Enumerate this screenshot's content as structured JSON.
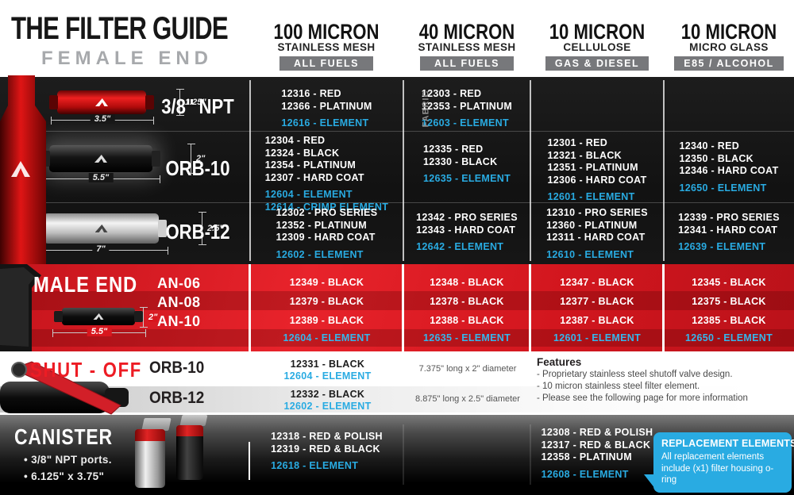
{
  "header": {
    "title": "THE FILTER GUIDE",
    "subtitle": "FEMALE END",
    "columns": [
      {
        "line1": "100 MICRON",
        "line2": "STAINLESS MESH",
        "badge": "ALL FUELS"
      },
      {
        "line1": "40 MICRON",
        "line2": "STAINLESS MESH",
        "badge": "ALL FUELS"
      },
      {
        "line1": "10 MICRON",
        "line2": "CELLULOSE",
        "badge": "GAS & DIESEL"
      },
      {
        "line1": "10 MICRON",
        "line2": "MICRO GLASS",
        "badge": "E85 / ALCOHOL"
      }
    ]
  },
  "female": {
    "rows": [
      {
        "label": "3/8\" NPT",
        "dim_height": "1.25\"",
        "dim_length": "3.5\"",
        "cells": [
          {
            "parts": [
              "12316 - RED",
              "12366 - PLATINUM"
            ],
            "elements": [
              "12616 - ELEMENT"
            ]
          },
          {
            "note": "FABRIC",
            "parts": [
              "12303 - RED",
              "12353 - PLATINUM"
            ],
            "elements": [
              "12603 - ELEMENT"
            ]
          },
          {
            "parts": [],
            "elements": []
          },
          {
            "parts": [],
            "elements": []
          }
        ]
      },
      {
        "label": "ORB-10",
        "dim_height": "2\"",
        "dim_length": "5.5\"",
        "cells": [
          {
            "parts": [
              "12304 - RED",
              "12324 - BLACK",
              "12354 - PLATINUM",
              "12307 - HARD COAT"
            ],
            "elements": [
              "12604 - ELEMENT",
              "12614 - CRIMP ELEMENT"
            ]
          },
          {
            "parts": [
              "12335 - RED",
              "12330 - BLACK"
            ],
            "elements": [
              "12635 - ELEMENT"
            ]
          },
          {
            "parts": [
              "12301 - RED",
              "12321 - BLACK",
              "12351 - PLATINUM",
              "12306 - HARD COAT"
            ],
            "elements": [
              "12601 - ELEMENT"
            ]
          },
          {
            "parts": [
              "12340 - RED",
              "12350 - BLACK",
              "12346 - HARD COAT"
            ],
            "elements": [
              "12650 - ELEMENT"
            ]
          }
        ]
      },
      {
        "label": "ORB-12",
        "dim_height": "2.5\"",
        "dim_length": "7\"",
        "cells": [
          {
            "parts": [
              "12302 - PRO SERIES",
              "12352 - PLATINUM",
              "12309 - HARD COAT"
            ],
            "elements": [
              "12602 - ELEMENT"
            ]
          },
          {
            "parts": [
              "12342 - PRO SERIES",
              "12343 - HARD COAT"
            ],
            "elements": [
              "12642 - ELEMENT"
            ]
          },
          {
            "parts": [
              "12310 - PRO SERIES",
              "12360 - PLATINUM",
              "12311 - HARD COAT"
            ],
            "elements": [
              "12610 - ELEMENT"
            ]
          },
          {
            "parts": [
              "12339 - PRO SERIES",
              "12341 - HARD COAT"
            ],
            "elements": [
              "12639 - ELEMENT"
            ]
          }
        ]
      }
    ]
  },
  "male": {
    "title": "MALE END",
    "dim_height": "2\"",
    "dim_length": "5.5\"",
    "rows": [
      {
        "label": "AN-06",
        "cells": [
          "12349 - BLACK",
          "12348 - BLACK",
          "12347 - BLACK",
          "12345 - BLACK"
        ]
      },
      {
        "label": "AN-08",
        "cells": [
          "12379 - BLACK",
          "12378 - BLACK",
          "12377 - BLACK",
          "12375 - BLACK"
        ]
      },
      {
        "label": "AN-10",
        "cells": [
          "12389 - BLACK",
          "12388 - BLACK",
          "12387 - BLACK",
          "12385 - BLACK"
        ]
      }
    ],
    "element_row": [
      "12604 - ELEMENT",
      "12635 - ELEMENT",
      "12601 - ELEMENT",
      "12650 - ELEMENT"
    ]
  },
  "shutoff": {
    "title": "SHUT - OFF",
    "rows": [
      {
        "label": "ORB-10",
        "part": "12331 - BLACK",
        "element": "12604 - ELEMENT",
        "dimensions": "7.375\" long x 2\" diameter"
      },
      {
        "label": "ORB-12",
        "part": "12332 - BLACK",
        "element": "12602 - ELEMENT",
        "dimensions": "8.875\" long x 2.5\" diameter"
      }
    ],
    "features": {
      "title": "Features",
      "items": [
        "- Proprietary stainless steel shutoff valve design.",
        "- 10 micron stainless steel filter element.",
        "- Please see the following page for more information"
      ]
    }
  },
  "canister": {
    "title": "CANISTER",
    "notes": [
      "• 3/8\" NPT ports.",
      "• 6.125\" x 3.75\""
    ],
    "cells": [
      {
        "parts": [
          "12318 - RED & POLISH",
          "12319 - RED & BLACK"
        ],
        "elements": [
          "12618 - ELEMENT"
        ]
      },
      {
        "parts": [
          "12308 - RED & POLISH",
          "12317 - RED & BLACK",
          "12358 - PLATINUM"
        ],
        "elements": [
          "12608 - ELEMENT"
        ]
      }
    ],
    "badge": {
      "title": "REPLACEMENT ELEMENTS",
      "body": "All replacement elements include (x1) filter housing o-ring"
    }
  },
  "colors": {
    "accent_red": "#e11b22",
    "accent_blue": "#29abe2",
    "badge_gray": "#77787b"
  }
}
